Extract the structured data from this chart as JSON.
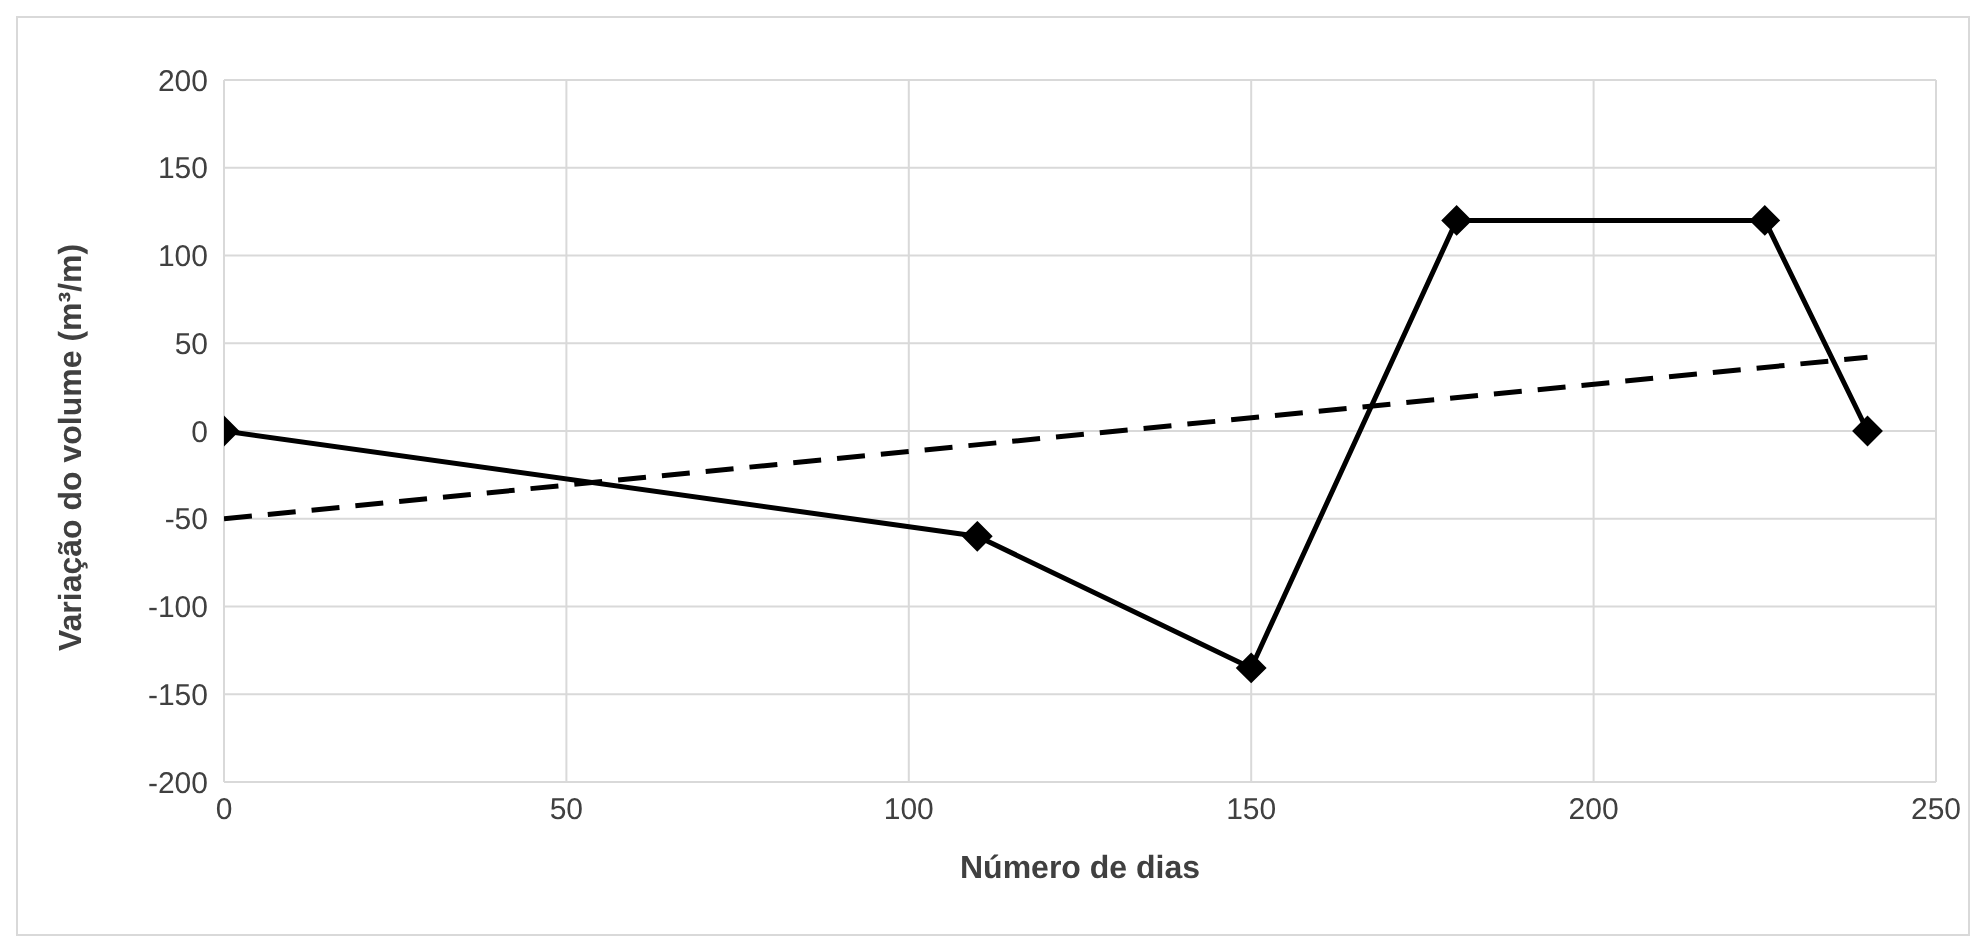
{
  "chart_data": {
    "type": "line",
    "xlabel": "Número de dias",
    "ylabel": "Variação do volume (m³/m)",
    "xlim": [
      0,
      250
    ],
    "xticks": [
      0,
      50,
      100,
      150,
      200,
      250
    ],
    "ylim": [
      -200,
      200
    ],
    "yticks": [
      -200,
      -150,
      -100,
      -50,
      0,
      50,
      100,
      150,
      200
    ],
    "grid": true,
    "series": [
      {
        "color": "#000000",
        "marker": "diamond",
        "line_style": "solid",
        "x": [
          0,
          110,
          150,
          180,
          225,
          240
        ],
        "values": [
          0,
          -60,
          -135,
          120,
          120,
          0
        ]
      },
      {
        "color": "#000000",
        "marker": "none",
        "line_style": "dashed",
        "x": [
          0,
          240
        ],
        "values": [
          -50,
          42
        ]
      }
    ]
  }
}
